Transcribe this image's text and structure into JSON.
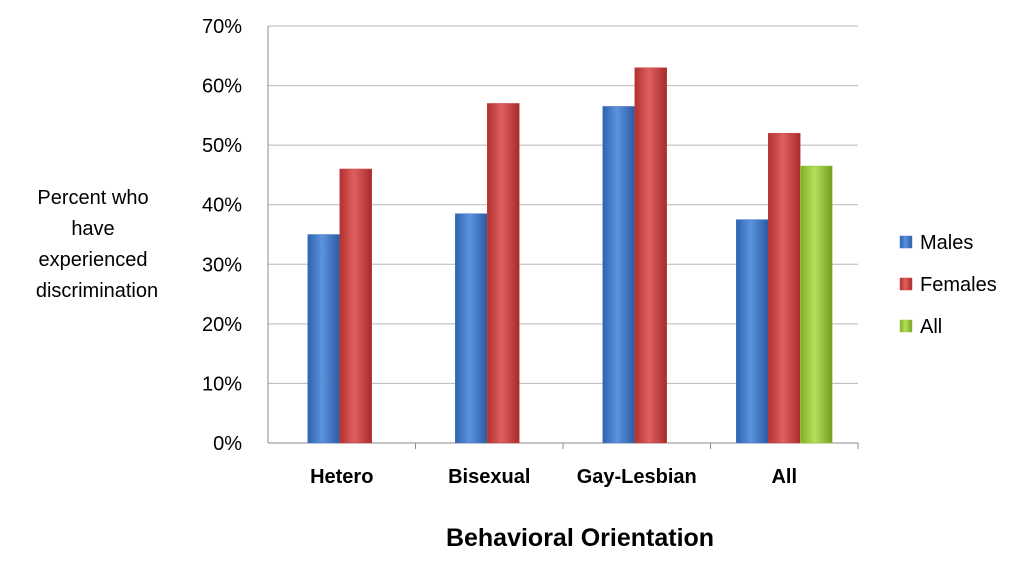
{
  "chart_data": {
    "type": "bar",
    "categories": [
      "Hetero",
      "Bisexual",
      "Gay-Lesbian",
      "All"
    ],
    "series": [
      {
        "name": "Males",
        "color": "#4a7ec9",
        "values": [
          35,
          38.5,
          56.5,
          37.5
        ]
      },
      {
        "name": "Females",
        "color": "#cc4444",
        "values": [
          46,
          57,
          63,
          52
        ]
      },
      {
        "name": "All",
        "color": "#9acb3c",
        "values": [
          null,
          null,
          null,
          46.5
        ]
      }
    ],
    "xlabel": "Behavioral Orientation",
    "ylabel_lines": [
      "Percent who",
      "have",
      "experienced",
      "discrimination"
    ],
    "ylim": [
      0,
      70
    ],
    "yticks": [
      0,
      10,
      20,
      30,
      40,
      50,
      60,
      70
    ],
    "ytick_format": "percent",
    "grid": true,
    "legend": "right"
  }
}
